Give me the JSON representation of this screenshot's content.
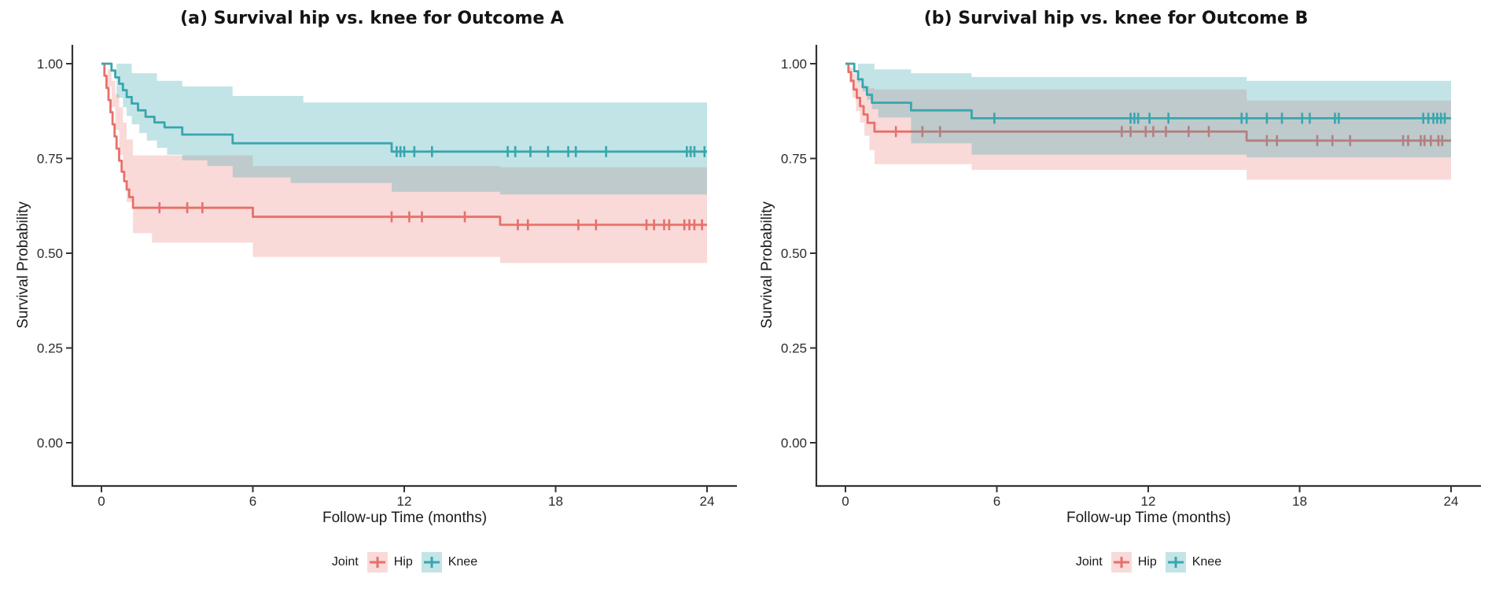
{
  "chart_data": [
    {
      "type": "line",
      "subtype": "kaplan-meier-step",
      "title": "(a) Survival hip vs. knee for Outcome A",
      "xlabel": "Follow-up Time (months)",
      "ylabel": "Survival Probability",
      "xlim": [
        0,
        24
      ],
      "ylim": [
        0,
        1
      ],
      "x_ticks": [
        0,
        6,
        12,
        18,
        24
      ],
      "y_ticks": [
        0,
        0.25,
        0.5,
        0.75,
        1
      ],
      "y_tick_labels": [
        "0.00",
        "0.25",
        "0.50",
        "0.75",
        "1.00"
      ],
      "grid": false,
      "legend": {
        "title": "Joint",
        "position": "bottom",
        "items": [
          "Hip",
          "Knee"
        ]
      },
      "series": [
        {
          "name": "Hip",
          "color": "#E7706A",
          "fill_opacity": 0.26,
          "steps": [
            [
              0,
              1.0
            ],
            [
              0.12,
              0.968
            ],
            [
              0.2,
              0.936
            ],
            [
              0.28,
              0.904
            ],
            [
              0.36,
              0.872
            ],
            [
              0.44,
              0.84
            ],
            [
              0.52,
              0.808
            ],
            [
              0.6,
              0.776
            ],
            [
              0.7,
              0.744
            ],
            [
              0.8,
              0.715
            ],
            [
              0.9,
              0.69
            ],
            [
              1.0,
              0.668
            ],
            [
              1.1,
              0.648
            ],
            [
              1.25,
              0.62
            ],
            [
              6.0,
              0.596
            ],
            [
              15.8,
              0.575
            ],
            [
              24,
              0.575
            ]
          ],
          "censor_times": [
            2.3,
            3.4,
            4.0,
            11.5,
            12.2,
            12.7,
            14.4,
            16.5,
            16.9,
            18.9,
            19.6,
            21.6,
            21.9,
            22.3,
            22.5,
            23.1,
            23.3,
            23.5,
            23.8
          ],
          "ci_upper": [
            [
              0,
              1.0
            ],
            [
              0.25,
              0.985
            ],
            [
              0.4,
              0.955
            ],
            [
              0.55,
              0.92
            ],
            [
              0.7,
              0.885
            ],
            [
              0.85,
              0.845
            ],
            [
              1.0,
              0.8
            ],
            [
              1.25,
              0.758
            ],
            [
              6.0,
              0.73
            ],
            [
              15.8,
              0.727
            ],
            [
              24,
              0.727
            ]
          ],
          "ci_lower": [
            [
              0,
              1.0
            ],
            [
              0.25,
              0.94
            ],
            [
              0.4,
              0.885
            ],
            [
              0.55,
              0.825
            ],
            [
              0.7,
              0.76
            ],
            [
              0.85,
              0.7
            ],
            [
              1.0,
              0.635
            ],
            [
              1.25,
              0.553
            ],
            [
              2.0,
              0.528
            ],
            [
              6.0,
              0.49
            ],
            [
              15.8,
              0.474
            ],
            [
              24,
              0.474
            ]
          ]
        },
        {
          "name": "Knee",
          "color": "#38A6AE",
          "fill_opacity": 0.3,
          "steps": [
            [
              0,
              1.0
            ],
            [
              0.4,
              0.982
            ],
            [
              0.55,
              0.964
            ],
            [
              0.7,
              0.947
            ],
            [
              0.85,
              0.93
            ],
            [
              1.0,
              0.912
            ],
            [
              1.2,
              0.895
            ],
            [
              1.45,
              0.877
            ],
            [
              1.75,
              0.86
            ],
            [
              2.1,
              0.845
            ],
            [
              2.5,
              0.832
            ],
            [
              3.2,
              0.813
            ],
            [
              5.2,
              0.79
            ],
            [
              11.5,
              0.768
            ],
            [
              24,
              0.768
            ]
          ],
          "censor_times": [
            11.7,
            11.85,
            12.0,
            12.4,
            13.1,
            16.1,
            16.4,
            17.0,
            17.7,
            18.5,
            18.8,
            20.0,
            23.2,
            23.35,
            23.5,
            23.9
          ],
          "ci_upper": [
            [
              0,
              1.0
            ],
            [
              0.85,
              1.0
            ],
            [
              1.2,
              0.975
            ],
            [
              2.2,
              0.955
            ],
            [
              3.2,
              0.94
            ],
            [
              5.2,
              0.915
            ],
            [
              8.0,
              0.898
            ],
            [
              24,
              0.898
            ]
          ],
          "ci_lower": [
            [
              0,
              1.0
            ],
            [
              0.6,
              0.91
            ],
            [
              0.85,
              0.885
            ],
            [
              1.0,
              0.862
            ],
            [
              1.2,
              0.84
            ],
            [
              1.5,
              0.817
            ],
            [
              1.8,
              0.797
            ],
            [
              2.2,
              0.778
            ],
            [
              2.6,
              0.76
            ],
            [
              3.2,
              0.745
            ],
            [
              4.2,
              0.73
            ],
            [
              5.2,
              0.7
            ],
            [
              7.5,
              0.685
            ],
            [
              11.5,
              0.662
            ],
            [
              15.8,
              0.655
            ],
            [
              24,
              0.655
            ]
          ]
        }
      ]
    },
    {
      "type": "line",
      "subtype": "kaplan-meier-step",
      "title": "(b) Survival hip vs. knee for Outcome B",
      "xlabel": "Follow-up Time (months)",
      "ylabel": "Survival Probability",
      "xlim": [
        0,
        24
      ],
      "ylim": [
        0,
        1
      ],
      "x_ticks": [
        0,
        6,
        12,
        18,
        24
      ],
      "y_ticks": [
        0,
        0.25,
        0.5,
        0.75,
        1
      ],
      "y_tick_labels": [
        "0.00",
        "0.25",
        "0.50",
        "0.75",
        "1.00"
      ],
      "grid": false,
      "legend": {
        "title": "Joint",
        "position": "bottom",
        "items": [
          "Hip",
          "Knee"
        ]
      },
      "series": [
        {
          "name": "Hip",
          "color": "#E7706A",
          "fill_opacity": 0.26,
          "steps": [
            [
              0,
              1.0
            ],
            [
              0.12,
              0.978
            ],
            [
              0.22,
              0.955
            ],
            [
              0.32,
              0.932
            ],
            [
              0.45,
              0.91
            ],
            [
              0.58,
              0.888
            ],
            [
              0.72,
              0.866
            ],
            [
              0.88,
              0.844
            ],
            [
              1.15,
              0.821
            ],
            [
              15.9,
              0.797
            ],
            [
              24,
              0.797
            ]
          ],
          "censor_times": [
            2.0,
            3.05,
            3.75,
            10.95,
            11.3,
            11.9,
            12.2,
            12.7,
            13.6,
            14.4,
            16.7,
            17.1,
            18.7,
            19.3,
            20.0,
            22.1,
            22.3,
            22.8,
            22.95,
            23.2,
            23.5,
            23.65
          ],
          "ci_upper": [
            [
              0,
              1.0
            ],
            [
              0.15,
              0.99
            ],
            [
              0.28,
              0.975
            ],
            [
              0.42,
              0.96
            ],
            [
              0.58,
              0.948
            ],
            [
              0.75,
              0.94
            ],
            [
              0.95,
              0.935
            ],
            [
              1.15,
              0.932
            ],
            [
              15.9,
              0.903
            ],
            [
              24,
              0.903
            ]
          ],
          "ci_lower": [
            [
              0,
              1.0
            ],
            [
              0.15,
              0.95
            ],
            [
              0.28,
              0.91
            ],
            [
              0.42,
              0.875
            ],
            [
              0.58,
              0.845
            ],
            [
              0.75,
              0.81
            ],
            [
              0.95,
              0.772
            ],
            [
              1.15,
              0.735
            ],
            [
              5.0,
              0.72
            ],
            [
              15.9,
              0.694
            ],
            [
              24,
              0.694
            ]
          ]
        },
        {
          "name": "Knee",
          "color": "#38A6AE",
          "fill_opacity": 0.3,
          "steps": [
            [
              0,
              1.0
            ],
            [
              0.35,
              0.98
            ],
            [
              0.5,
              0.959
            ],
            [
              0.68,
              0.938
            ],
            [
              0.85,
              0.918
            ],
            [
              1.05,
              0.897
            ],
            [
              2.6,
              0.877
            ],
            [
              5.0,
              0.856
            ],
            [
              24,
              0.856
            ]
          ],
          "censor_times": [
            5.9,
            11.3,
            11.45,
            11.6,
            12.05,
            12.8,
            15.7,
            15.9,
            16.7,
            17.3,
            18.1,
            18.4,
            19.4,
            19.55,
            22.9,
            23.1,
            23.3,
            23.45,
            23.6,
            23.75
          ],
          "ci_upper": [
            [
              0,
              1.0
            ],
            [
              0.9,
              1.0
            ],
            [
              1.15,
              0.985
            ],
            [
              2.6,
              0.975
            ],
            [
              5.0,
              0.965
            ],
            [
              15.9,
              0.955
            ],
            [
              24,
              0.955
            ]
          ],
          "ci_lower": [
            [
              0,
              1.0
            ],
            [
              0.5,
              0.95
            ],
            [
              0.68,
              0.927
            ],
            [
              0.85,
              0.905
            ],
            [
              1.05,
              0.88
            ],
            [
              1.3,
              0.858
            ],
            [
              2.6,
              0.79
            ],
            [
              5.0,
              0.76
            ],
            [
              15.9,
              0.753
            ],
            [
              24,
              0.753
            ]
          ]
        }
      ]
    }
  ],
  "style": {
    "axis_color": "#333333",
    "text_color": "#2b2b2b",
    "background": "#ffffff"
  }
}
